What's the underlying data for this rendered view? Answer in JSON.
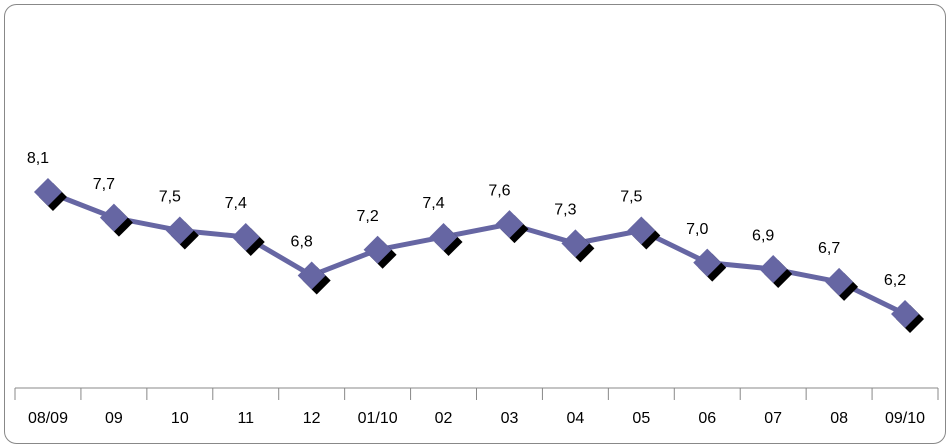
{
  "chart_data": {
    "type": "line",
    "categories": [
      "08/09",
      "09",
      "10",
      "11",
      "12",
      "01/10",
      "02",
      "03",
      "04",
      "05",
      "06",
      "07",
      "08",
      "09/10"
    ],
    "series": [
      {
        "color": "#6666a3",
        "values": [
          8.1,
          7.7,
          7.5,
          7.4,
          6.8,
          7.2,
          7.4,
          7.6,
          7.3,
          7.5,
          7.0,
          6.9,
          6.7,
          6.2
        ],
        "value_labels": [
          "8,1",
          "7,7",
          "7,5",
          "7,4",
          "6,8",
          "7,2",
          "7,4",
          "7,6",
          "7,3",
          "7,5",
          "7,0",
          "6,9",
          "6,7",
          "6,2"
        ]
      }
    ]
  }
}
